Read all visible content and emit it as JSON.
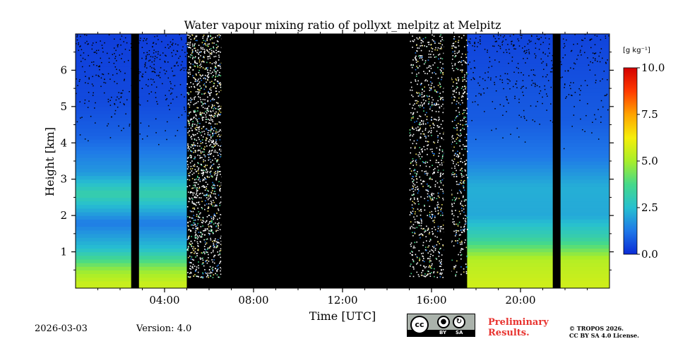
{
  "chart_data": {
    "type": "heatmap",
    "title": "Water vapour mixing ratio of pollyxt_melpitz at Melpitz",
    "xlabel": "Time [UTC]",
    "ylabel": "Height [km]",
    "xlim": [
      0,
      24
    ],
    "ylim": [
      0,
      7
    ],
    "x_ticks": [
      {
        "value": 4,
        "label": "04:00"
      },
      {
        "value": 8,
        "label": "08:00"
      },
      {
        "value": 12,
        "label": "12:00"
      },
      {
        "value": 16,
        "label": "16:00"
      },
      {
        "value": 20,
        "label": "20:00"
      }
    ],
    "y_ticks": [
      {
        "value": 1,
        "label": "1"
      },
      {
        "value": 2,
        "label": "2"
      },
      {
        "value": 3,
        "label": "3"
      },
      {
        "value": 4,
        "label": "4"
      },
      {
        "value": 5,
        "label": "5"
      },
      {
        "value": 6,
        "label": "6"
      }
    ],
    "colorbar": {
      "label": "[g kg⁻¹]",
      "range": [
        0,
        10
      ],
      "ticks": [
        {
          "value": 0,
          "label": "0.0"
        },
        {
          "value": 2.5,
          "label": "2.5"
        },
        {
          "value": 5,
          "label": "5.0"
        },
        {
          "value": 7.5,
          "label": "7.5"
        },
        {
          "value": 10,
          "label": "10.0"
        }
      ],
      "colors": [
        "#0a2bd6",
        "#1f78e8",
        "#27c0d0",
        "#45d98a",
        "#a8ee2a",
        "#f5ee0a",
        "#ffa300",
        "#ff3a00",
        "#d40000"
      ]
    },
    "no_data_periods": [
      {
        "start": 2.5,
        "end": 2.85
      },
      {
        "start": 6.55,
        "end": 6.9
      },
      {
        "start": 7.25,
        "end": 15.0
      },
      {
        "start": 16.55,
        "end": 16.9
      },
      {
        "start": 21.45,
        "end": 21.8
      }
    ],
    "cloud_noise_periods": [
      {
        "start": 5.0,
        "end": 6.6
      },
      {
        "start": 15.0,
        "end": 17.6
      }
    ],
    "layers": [
      {
        "start": 0,
        "end": 5.0,
        "levels": [
          {
            "height": 0.15,
            "value": 5.5
          },
          {
            "height": 0.5,
            "value": 4.8
          },
          {
            "height": 1.1,
            "value": 2.5
          },
          {
            "height": 1.8,
            "value": 1.3
          },
          {
            "height": 2.6,
            "value": 3.2
          },
          {
            "height": 3.2,
            "value": 1.8
          },
          {
            "height": 4.2,
            "value": 0.9
          },
          {
            "height": 5.2,
            "value": 0.5
          },
          {
            "height": 7.0,
            "value": 0.3
          }
        ]
      },
      {
        "start": 17.6,
        "end": 24,
        "levels": [
          {
            "height": 0.15,
            "value": 5.6
          },
          {
            "height": 0.8,
            "value": 5.2
          },
          {
            "height": 1.4,
            "value": 3.2
          },
          {
            "height": 2.0,
            "value": 2.1
          },
          {
            "height": 2.8,
            "value": 2.2
          },
          {
            "height": 3.6,
            "value": 1.3
          },
          {
            "height": 4.6,
            "value": 0.8
          },
          {
            "height": 7.0,
            "value": 0.4
          }
        ]
      }
    ]
  },
  "footer": {
    "date": "2026-03-03",
    "version": "Version: 4.0",
    "cc_by": "BY",
    "cc_sa": "SA",
    "cc_mark": "cc",
    "preliminary_line1": "Preliminary",
    "preliminary_line2": "Results.",
    "copyright_line1": "© TROPOS 2026.",
    "copyright_line2": "CC BY SA 4.0 License."
  }
}
